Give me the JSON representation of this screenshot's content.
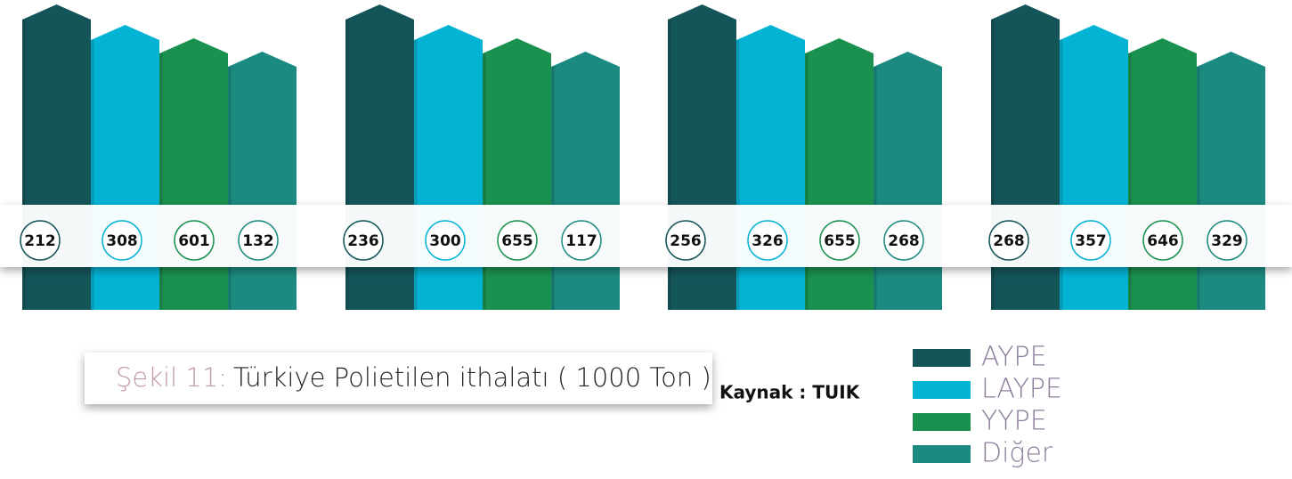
{
  "groups": [
    {
      "values": [
        "212",
        "308",
        "601",
        "132"
      ]
    },
    {
      "values": [
        "236",
        "300",
        "655",
        "117"
      ]
    },
    {
      "values": [
        "256",
        "326",
        "655",
        "268"
      ]
    },
    {
      "values": [
        "268",
        "357",
        "646",
        "329"
      ]
    }
  ],
  "caption": {
    "label": "Şekil 11:",
    "text": "Türkiye Polietilen ithalatı ( 1000 Ton )"
  },
  "source": "Kaynak : TUIK",
  "legend": [
    {
      "name": "AYPE",
      "color": "#14555a"
    },
    {
      "name": "LAYPE",
      "color": "#03b3d4"
    },
    {
      "name": "YYPE",
      "color": "#1b9150"
    },
    {
      "name": "Diğer",
      "color": "#1c8a80"
    }
  ]
}
